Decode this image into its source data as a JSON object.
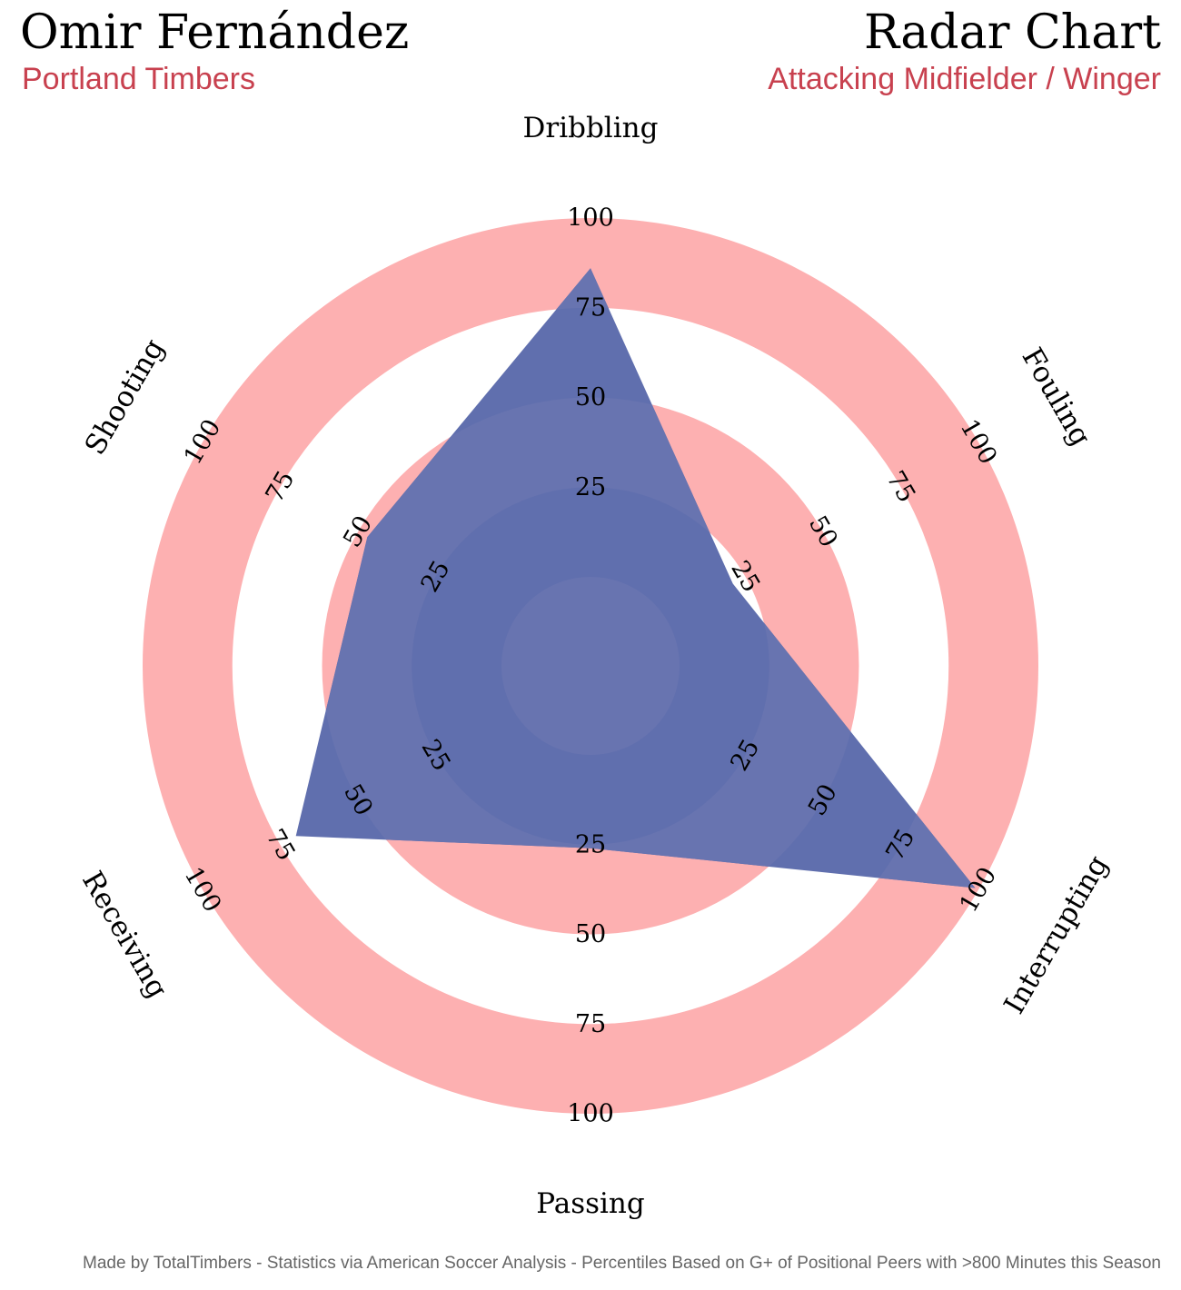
{
  "header": {
    "player_name": "Omir Fernández",
    "team": "Portland Timbers",
    "chart_title": "Radar Chart",
    "position": "Attacking Midfielder / Winger"
  },
  "footer": {
    "text": "Made by TotalTimbers - Statistics via American Soccer Analysis - Percentiles Based on G+ of Positional Peers with >800 Minutes this Season"
  },
  "colors": {
    "ring_fill": "#fdb0b1",
    "ring_background": "#ffffff",
    "polygon_fill": "#5b6aab",
    "polygon_over_ring": "#6874b0",
    "title_accent": "#c8414f"
  },
  "chart_data": {
    "type": "radar",
    "parameters": [
      "Dribbling",
      "Fouling",
      "Interrupting",
      "Passing",
      "Receiving",
      "Shooting"
    ],
    "values": [
      86,
      21,
      99,
      26,
      70,
      47
    ],
    "range": [
      0,
      100
    ],
    "ticks": [
      "25",
      "50",
      "75",
      "100"
    ],
    "bottom_axis_ticks": [
      "25",
      "50",
      "75",
      "100"
    ]
  }
}
